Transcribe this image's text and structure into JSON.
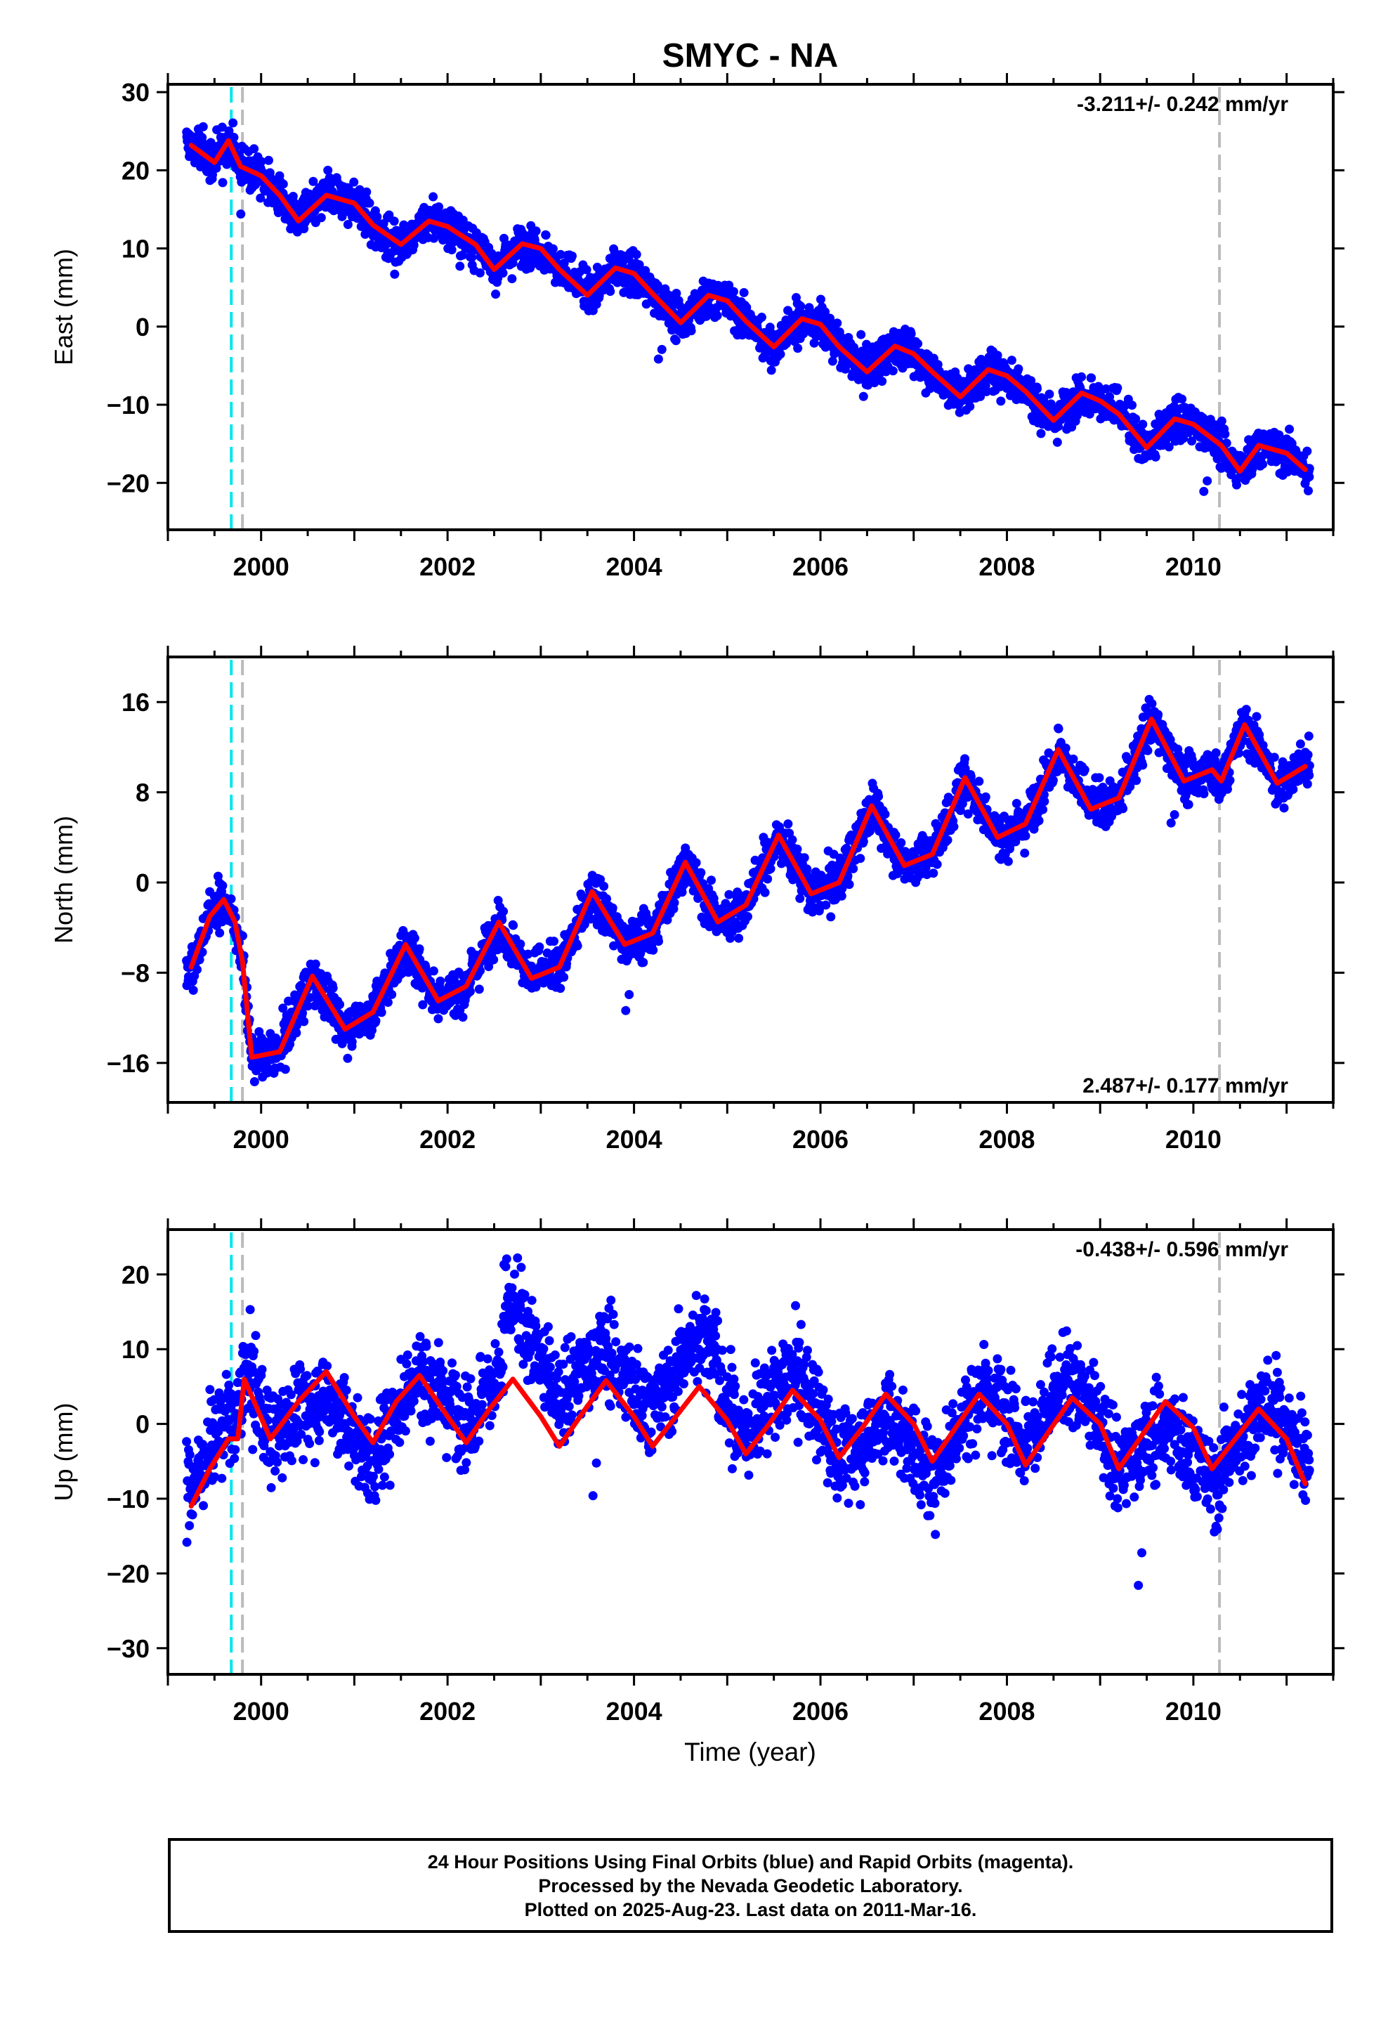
{
  "title": "SMYC - NA",
  "xlabel": "Time (year)",
  "colors": {
    "final_orbits": "#0000ff",
    "model": "#ff0000",
    "cyan_line": "#00e5ee",
    "gray_line": "#bbbbbb"
  },
  "caption": [
    "24 Hour Positions Using Final Orbits (blue) and Rapid Orbits (magenta).",
    "Processed by the Nevada Geodetic Laboratory.",
    "Plotted on 2025-Aug-23. Last data on 2011-Mar-16."
  ],
  "chart_data": [
    {
      "type": "scatter",
      "ylabel": "East (mm)",
      "rate_label": "-3.211+/- 0.242 mm/yr",
      "rate_position": "top-right",
      "xlim": [
        1999.0,
        2011.5
      ],
      "ylim": [
        -26,
        31
      ],
      "xticks": [
        2000,
        2002,
        2004,
        2006,
        2008,
        2010
      ],
      "yticks": [
        30,
        20,
        10,
        0,
        -10,
        -20
      ],
      "ytick_labels": [
        "30",
        "20",
        "10",
        "0",
        "−10",
        "−20"
      ],
      "vlines": [
        {
          "x": 1999.68,
          "color": "cyan"
        },
        {
          "x": 1999.8,
          "color": "gray"
        },
        {
          "x": 2010.28,
          "color": "gray"
        }
      ],
      "series": [
        {
          "x": [
            1999.25,
            1999.5,
            1999.65,
            1999.78,
            2000.0,
            2000.2,
            2000.4,
            2000.7,
            2001.0,
            2001.2,
            2001.5,
            2001.8,
            2002.0,
            2002.3,
            2002.5,
            2002.8,
            2003.0,
            2003.2,
            2003.5,
            2003.8,
            2004.0,
            2004.2,
            2004.5,
            2004.8,
            2005.0,
            2005.2,
            2005.5,
            2005.8,
            2006.0,
            2006.2,
            2006.5,
            2006.8,
            2007.0,
            2007.2,
            2007.5,
            2007.8,
            2008.0,
            2008.2,
            2008.5,
            2008.8,
            2009.0,
            2009.2,
            2009.5,
            2009.8,
            2010.0,
            2010.3,
            2010.5,
            2010.7,
            2011.0,
            2011.2
          ],
          "values": [
            23.2,
            21.0,
            23.8,
            20.5,
            19.3,
            16.8,
            13.5,
            16.8,
            15.8,
            13.0,
            10.5,
            13.5,
            12.8,
            10.5,
            7.3,
            10.6,
            10.0,
            7.3,
            4.0,
            7.5,
            6.8,
            4.2,
            0.5,
            4.0,
            3.3,
            0.7,
            -2.6,
            1.0,
            0.3,
            -2.6,
            -5.8,
            -2.5,
            -3.5,
            -5.8,
            -9.0,
            -5.5,
            -6.3,
            -8.3,
            -12.0,
            -8.5,
            -9.5,
            -11.2,
            -15.5,
            -11.8,
            -12.5,
            -15.2,
            -18.5,
            -15.2,
            -16.2,
            -18.3
          ]
        }
      ]
    },
    {
      "type": "scatter",
      "ylabel": "North (mm)",
      "rate_label": "2.487+/- 0.177 mm/yr",
      "rate_position": "bottom-right",
      "xlim": [
        1999.0,
        2011.5
      ],
      "ylim": [
        -19.5,
        20
      ],
      "xticks": [
        2000,
        2002,
        2004,
        2006,
        2008,
        2010
      ],
      "yticks": [
        16,
        8,
        0,
        -8,
        -16
      ],
      "ytick_labels": [
        "16",
        "8",
        "0",
        "−8",
        "−16"
      ],
      "vlines": [
        {
          "x": 1999.68,
          "color": "cyan"
        },
        {
          "x": 1999.8,
          "color": "gray"
        },
        {
          "x": 2010.28,
          "color": "gray"
        }
      ],
      "series": [
        {
          "x": [
            1999.25,
            1999.45,
            1999.6,
            1999.72,
            1999.8,
            1999.9,
            2000.2,
            2000.55,
            2000.9,
            2001.2,
            2001.55,
            2001.9,
            2002.2,
            2002.55,
            2002.9,
            2003.2,
            2003.55,
            2003.9,
            2004.2,
            2004.55,
            2004.9,
            2005.2,
            2005.55,
            2005.9,
            2006.2,
            2006.55,
            2006.9,
            2007.2,
            2007.55,
            2007.9,
            2008.2,
            2008.55,
            2008.9,
            2009.2,
            2009.55,
            2009.9,
            2010.2,
            2010.3,
            2010.55,
            2010.9,
            2011.2
          ],
          "values": [
            -7.5,
            -3.0,
            -1.5,
            -3.5,
            -7.0,
            -15.5,
            -15.0,
            -8.3,
            -13.0,
            -11.5,
            -5.5,
            -10.5,
            -9.2,
            -3.5,
            -8.5,
            -7.5,
            -0.8,
            -5.5,
            -4.5,
            1.8,
            -3.5,
            -2.0,
            4.2,
            -1.0,
            0.0,
            6.8,
            1.5,
            2.5,
            9.3,
            4.0,
            5.2,
            11.8,
            6.5,
            7.5,
            14.5,
            9.0,
            10.0,
            9.0,
            14.0,
            8.8,
            10.3
          ]
        }
      ]
    },
    {
      "type": "scatter",
      "ylabel": "Up (mm)",
      "rate_label": "-0.438+/- 0.596 mm/yr",
      "rate_position": "top-right",
      "xlim": [
        1999.0,
        2011.5
      ],
      "ylim": [
        -33.5,
        26
      ],
      "xticks": [
        2000,
        2002,
        2004,
        2006,
        2008,
        2010
      ],
      "yticks": [
        20,
        10,
        0,
        -10,
        -20,
        -30
      ],
      "ytick_labels": [
        "20",
        "10",
        "0",
        "−10",
        "−20",
        "−30"
      ],
      "vlines": [
        {
          "x": 1999.68,
          "color": "cyan"
        },
        {
          "x": 1999.8,
          "color": "gray"
        },
        {
          "x": 2010.28,
          "color": "gray"
        }
      ],
      "series": [
        {
          "x": [
            1999.25,
            1999.45,
            1999.65,
            1999.75,
            1999.82,
            2000.1,
            2000.4,
            2000.7,
            2001.0,
            2001.2,
            2001.45,
            2001.7,
            2002.0,
            2002.2,
            2002.45,
            2002.7,
            2003.0,
            2003.2,
            2003.45,
            2003.7,
            2004.0,
            2004.2,
            2004.45,
            2004.7,
            2005.0,
            2005.2,
            2005.45,
            2005.7,
            2006.0,
            2006.2,
            2006.45,
            2006.7,
            2007.0,
            2007.2,
            2007.45,
            2007.7,
            2008.0,
            2008.2,
            2008.45,
            2008.7,
            2009.0,
            2009.2,
            2009.45,
            2009.7,
            2010.0,
            2010.2,
            2010.45,
            2010.7,
            2011.0,
            2011.2
          ],
          "values": [
            -11.0,
            -6.0,
            -2.0,
            -2.0,
            6.0,
            -2.0,
            3.0,
            7.0,
            1.0,
            -2.5,
            3.0,
            6.5,
            1.0,
            -2.5,
            2.0,
            6.0,
            1.0,
            -3.0,
            1.5,
            5.8,
            1.0,
            -3.0,
            1.0,
            5.0,
            0.5,
            -4.0,
            0.0,
            4.5,
            0.5,
            -4.5,
            -0.5,
            4.0,
            0.0,
            -5.0,
            -0.5,
            4.0,
            0.0,
            -5.5,
            -1.0,
            3.5,
            0.0,
            -6.0,
            -1.5,
            3.0,
            -0.5,
            -6.0,
            -2.0,
            2.0,
            -2.0,
            -8.0
          ]
        }
      ]
    }
  ]
}
